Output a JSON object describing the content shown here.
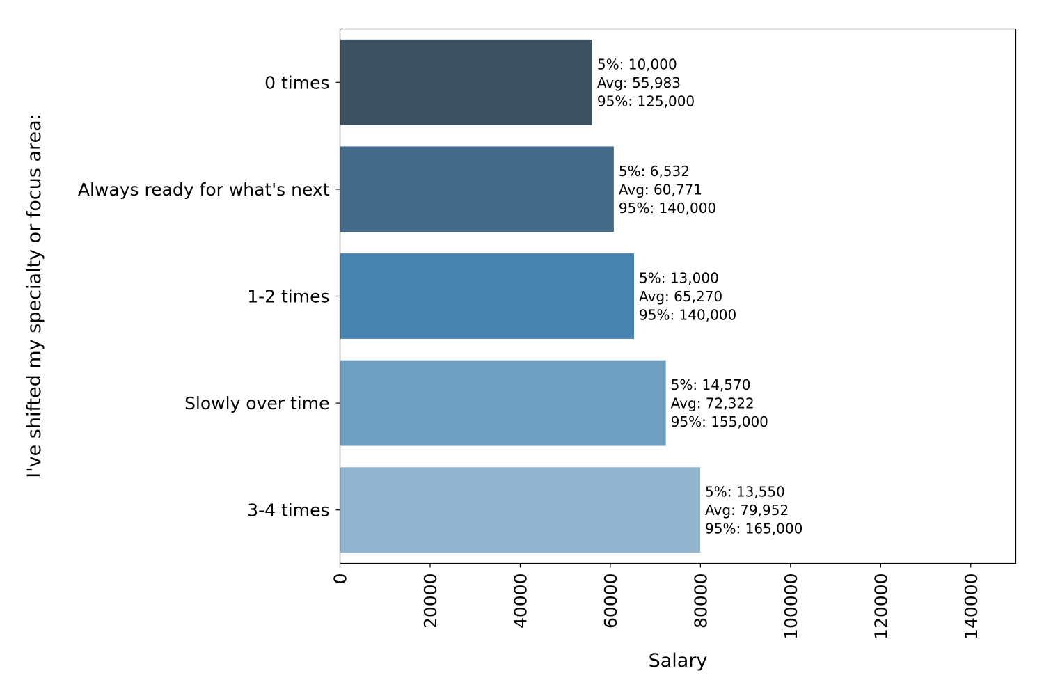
{
  "chart_data": {
    "type": "bar",
    "orientation": "horizontal",
    "title": "",
    "xlabel": "Salary",
    "ylabel": "I've shifted my specialty or focus area:",
    "xlim": [
      0,
      150000
    ],
    "xticks": [
      0,
      20000,
      40000,
      60000,
      80000,
      100000,
      120000,
      140000
    ],
    "xtick_labels": [
      "0",
      "20000",
      "40000",
      "60000",
      "80000",
      "100000",
      "120000",
      "140000"
    ],
    "grid": false,
    "categories": [
      "0 times",
      "Always ready for what's next",
      "1-2 times",
      "Slowly over time",
      "3-4 times"
    ],
    "values": [
      55983,
      60771,
      65270,
      72322,
      79952
    ],
    "colors": [
      "#3d5160",
      "#436a88",
      "#4883af",
      "#6e9ec0",
      "#91b5cf"
    ],
    "annotations": [
      [
        "5%: 10,000",
        "Avg: 55,983",
        "95%: 125,000"
      ],
      [
        "5%: 6,532",
        "Avg: 60,771",
        "95%: 140,000"
      ],
      [
        "5%: 13,000",
        "Avg: 65,270",
        "95%: 140,000"
      ],
      [
        "5%: 14,570",
        "Avg: 72,322",
        "95%: 155,000"
      ],
      [
        "5%: 13,550",
        "Avg: 79,952",
        "95%: 165,000"
      ]
    ]
  }
}
